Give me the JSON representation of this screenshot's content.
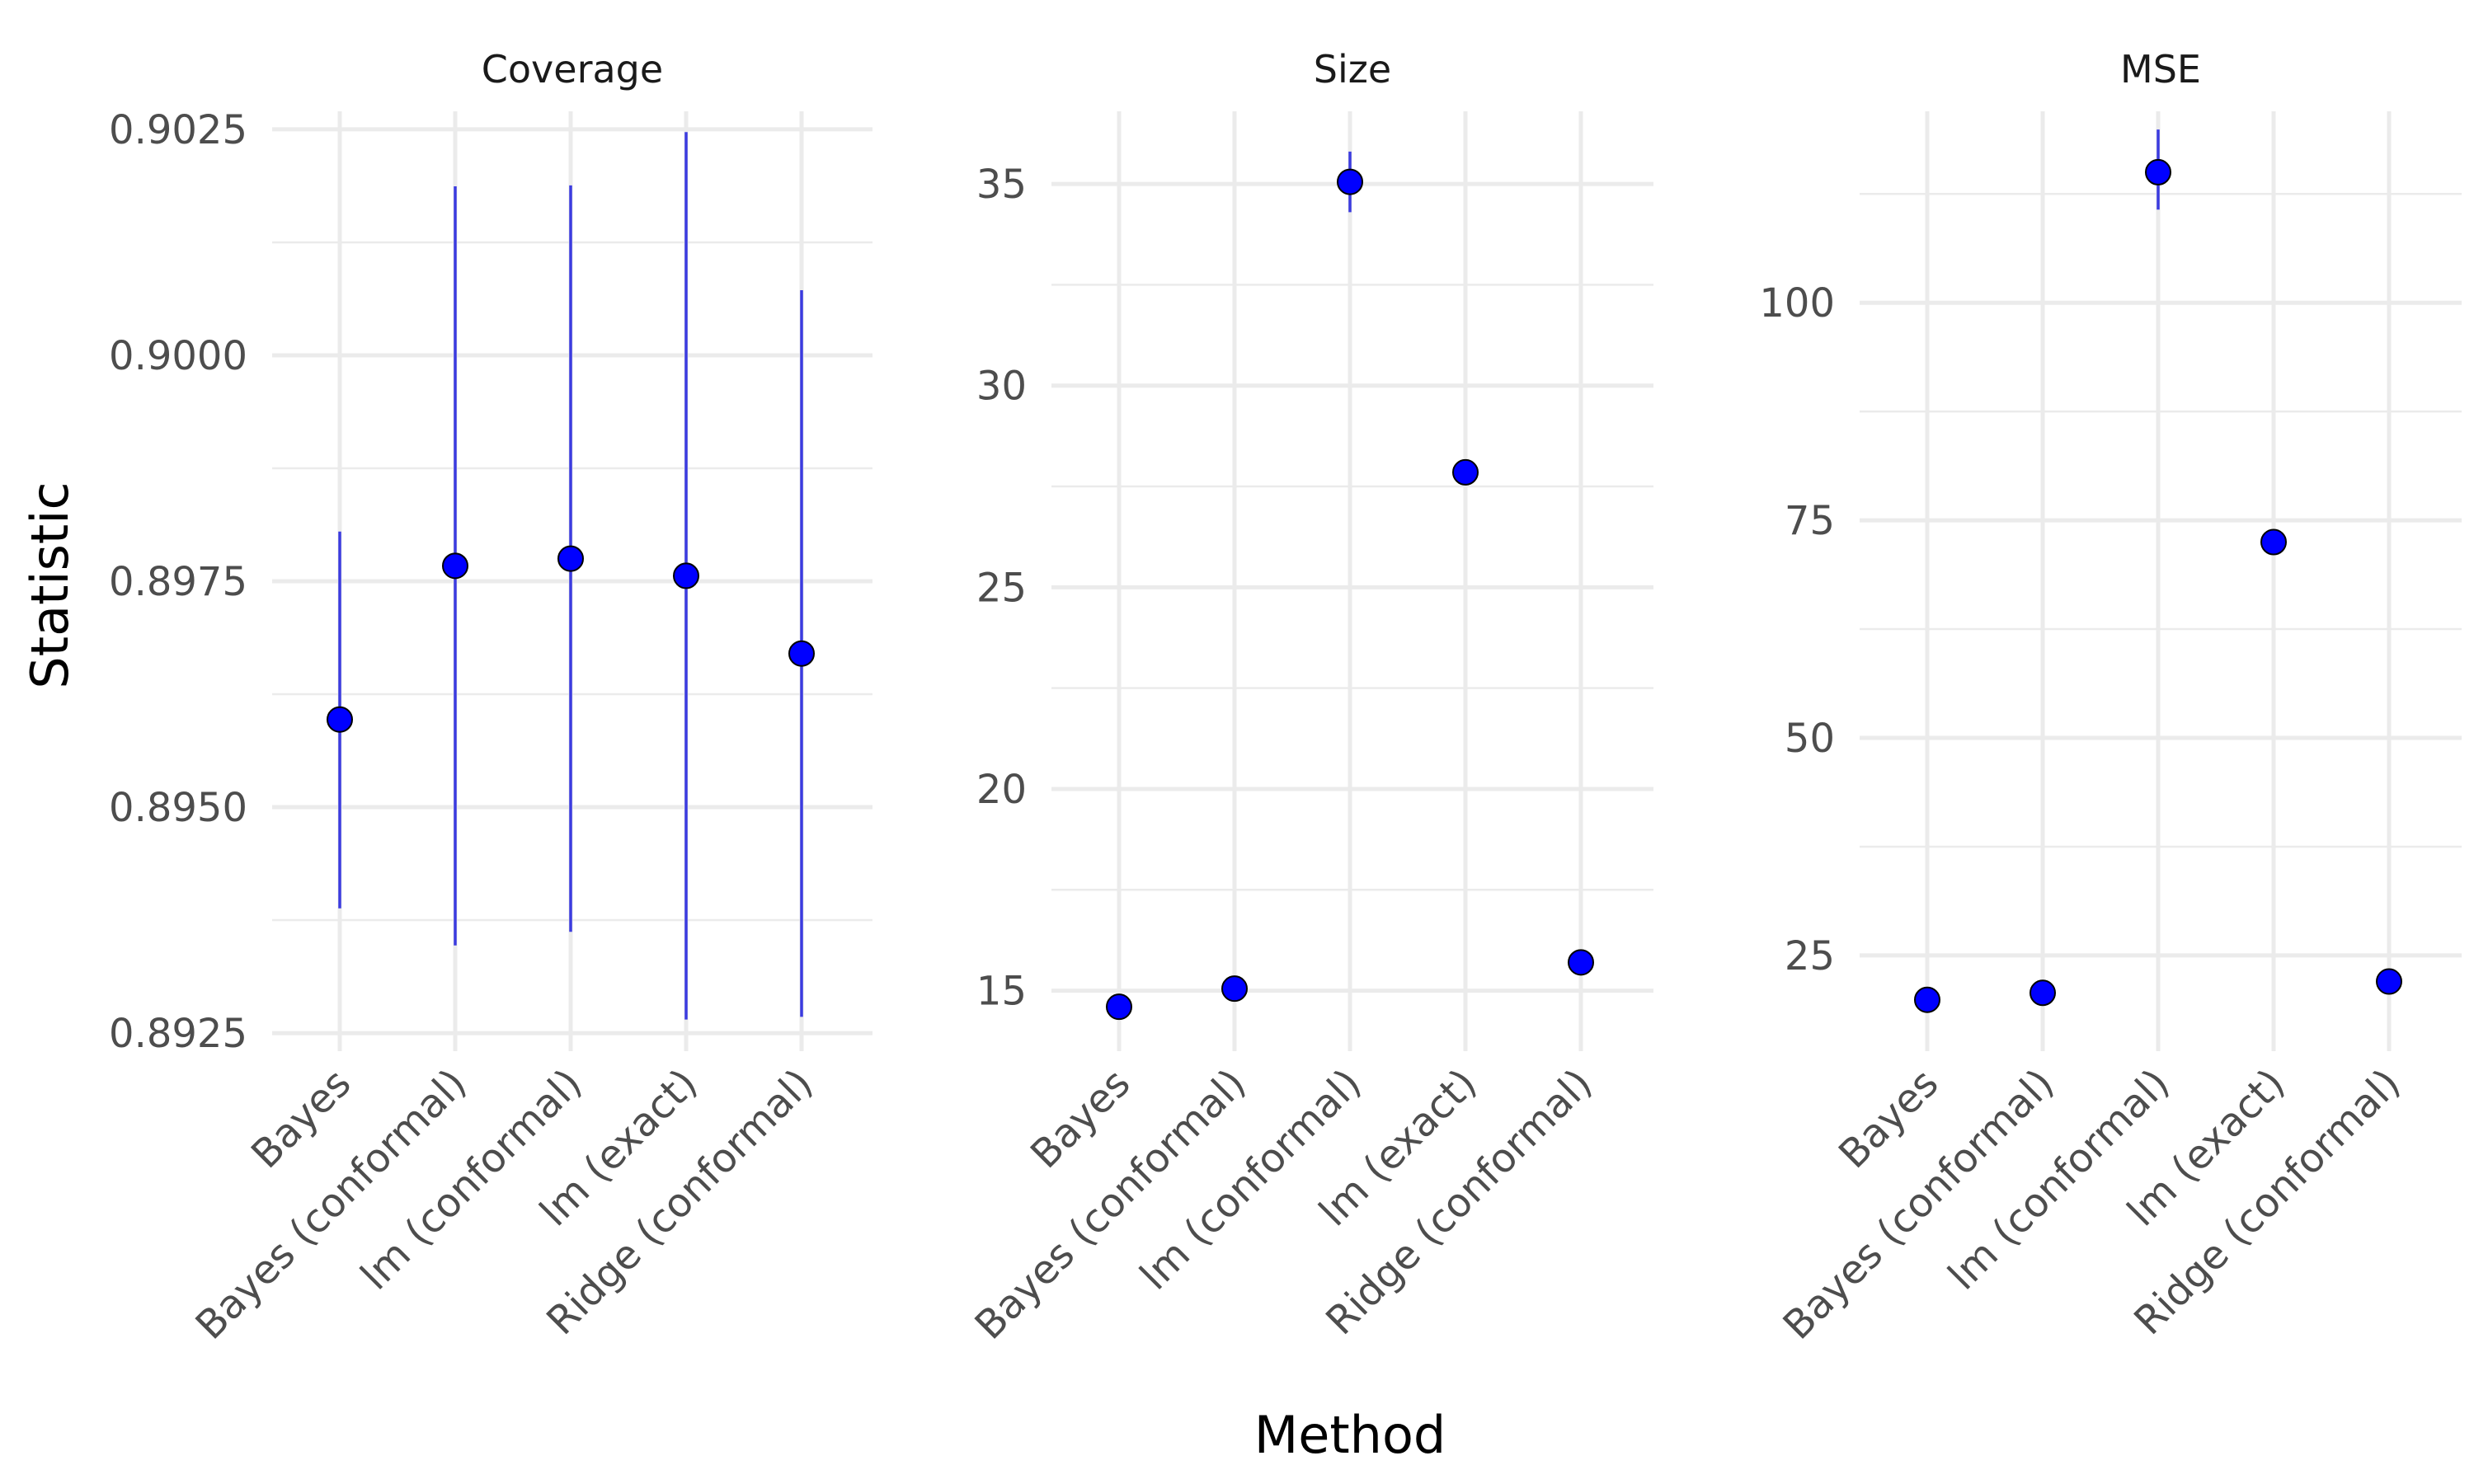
{
  "colors": {
    "point_fill": "#0000ff",
    "errorbar": "#3b3bdf",
    "grid": "#ebebeb",
    "background": "#ffffff"
  },
  "chart_data": {
    "type": "scatter",
    "layout": "facets",
    "xlabel": "Method",
    "ylabel": "Statistic",
    "categories": [
      "Bayes",
      "Bayes (conformal)",
      "lm (conformal)",
      "lm (exact)",
      "Ridge (conformal)"
    ],
    "grid": true,
    "legend": "none",
    "panels": [
      {
        "title": "Coverage",
        "ylim": [
          0.8923,
          0.9027
        ],
        "yticks": [
          0.8925,
          0.895,
          0.8975,
          0.9,
          0.9025
        ],
        "ytick_labels": [
          "0.8925",
          "0.8950",
          "0.8975",
          "0.9000",
          "0.9025"
        ],
        "points": [
          {
            "category": "Bayes",
            "value": 0.89597,
            "low": 0.89388,
            "high": 0.89805
          },
          {
            "category": "Bayes (conformal)",
            "value": 0.89767,
            "low": 0.89347,
            "high": 0.90187
          },
          {
            "category": "lm (conformal)",
            "value": 0.89775,
            "low": 0.89362,
            "high": 0.90188
          },
          {
            "category": "lm (exact)",
            "value": 0.89756,
            "low": 0.89265,
            "high": 0.90247
          },
          {
            "category": "Ridge (conformal)",
            "value": 0.8967,
            "low": 0.89268,
            "high": 0.90072
          }
        ]
      },
      {
        "title": "Size",
        "ylim": [
          13.5,
          36.8
        ],
        "yticks": [
          15,
          20,
          25,
          30,
          35
        ],
        "ytick_labels": [
          "15",
          "20",
          "25",
          "30",
          "35"
        ],
        "points": [
          {
            "category": "Bayes",
            "value": 14.6,
            "low": 14.5,
            "high": 14.7
          },
          {
            "category": "Bayes (conformal)",
            "value": 15.05,
            "low": 14.95,
            "high": 15.15
          },
          {
            "category": "lm (conformal)",
            "value": 35.05,
            "low": 34.3,
            "high": 35.8
          },
          {
            "category": "lm (exact)",
            "value": 27.85,
            "low": 27.75,
            "high": 27.95
          },
          {
            "category": "Ridge (conformal)",
            "value": 15.7,
            "low": 15.6,
            "high": 15.8
          }
        ]
      },
      {
        "title": "MSE",
        "ylim": [
          14,
          122
        ],
        "yticks": [
          25,
          50,
          75,
          100
        ],
        "ytick_labels": [
          "25",
          "50",
          "75",
          "100"
        ],
        "points": [
          {
            "category": "Bayes",
            "value": 19.9,
            "low": 19.6,
            "high": 20.2
          },
          {
            "category": "Bayes (conformal)",
            "value": 20.7,
            "low": 20.4,
            "high": 21.0
          },
          {
            "category": "lm (conformal)",
            "value": 115.0,
            "low": 110.7,
            "high": 119.9
          },
          {
            "category": "lm (exact)",
            "value": 72.5,
            "low": 71.3,
            "high": 73.7
          },
          {
            "category": "Ridge (conformal)",
            "value": 22.0,
            "low": 21.7,
            "high": 22.3
          }
        ]
      }
    ]
  }
}
